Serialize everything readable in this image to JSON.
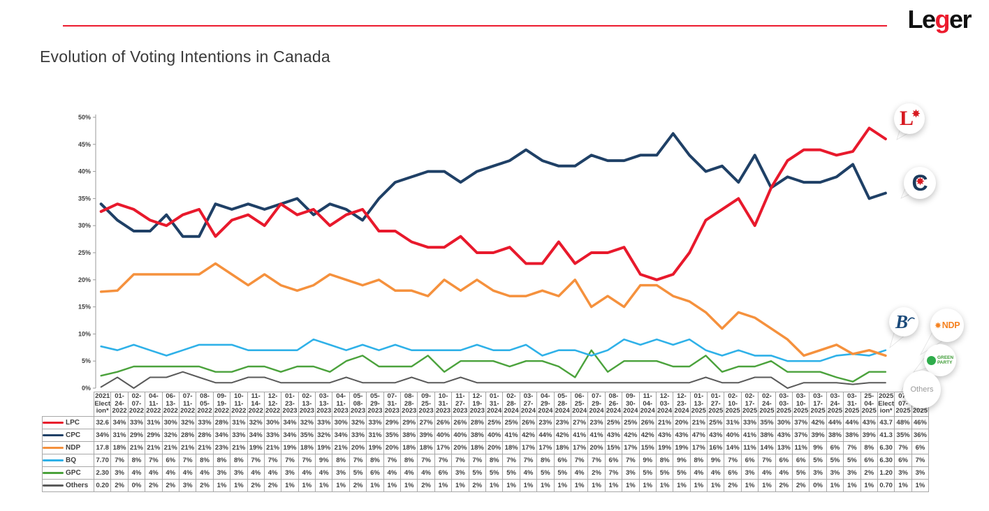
{
  "logo": {
    "part1": "Le",
    "part2": "g",
    "part3": "er"
  },
  "title": "Evolution of Voting Intentions in Canada",
  "chart_data": {
    "type": "line",
    "title": "Evolution of Voting Intentions in Canada",
    "xlabel": "",
    "ylabel": "",
    "ylim": [
      0,
      50
    ],
    "grid": false,
    "legend_position": "table-left",
    "yticks_pct": [
      0,
      5,
      10,
      15,
      20,
      25,
      30,
      35,
      40,
      45,
      50
    ],
    "x_labels": [
      "2021 Election*",
      "01-24-2022",
      "02-07-2022",
      "04-11-2022",
      "06-13-2022",
      "07-11-2022",
      "08-05-2022",
      "09-19-2022",
      "10-11-2022",
      "11-14-2022",
      "12-12-2022",
      "01-23-2023",
      "02-13-2023",
      "03-13-2023",
      "04-11-2023",
      "05-08-2023",
      "05-29-2023",
      "07-31-2023",
      "08-28-2023",
      "09-25-2023",
      "10-31-2023",
      "11-27-2023",
      "12-19-2023",
      "01-31-2024",
      "02-28-2024",
      "03-27-2024",
      "04-29-2024",
      "05-28-2024",
      "06-25-2024",
      "07-29-2024",
      "08-26-2024",
      "09-30-2024",
      "11-04-2024",
      "12-03-2024",
      "12-23-2024",
      "01-13-2025",
      "01-27-2025",
      "02-10-2025",
      "02-17-2025",
      "02-24-2025",
      "03-03-2025",
      "03-10-2025",
      "03-17-2025",
      "03-24-2025",
      "03-31-2025",
      "25-04-2025",
      "2025 Election*",
      "07-07-2025",
      "03-08-2025"
    ],
    "series": [
      {
        "name": "LPC",
        "color": "#e8192c",
        "values": [
          32.6,
          34,
          33,
          31,
          30,
          32,
          33,
          28,
          31,
          32,
          30,
          34,
          32,
          33,
          30,
          32,
          33,
          29,
          29,
          27,
          26,
          26,
          28,
          25,
          25,
          26,
          23,
          23,
          27,
          23,
          25,
          25,
          26,
          21,
          20,
          21,
          25,
          31,
          33,
          35,
          30,
          37,
          42,
          44,
          44,
          43,
          43.7,
          48,
          46
        ]
      },
      {
        "name": "CPC",
        "color": "#1f4066",
        "values": [
          34,
          31,
          29,
          29,
          32,
          28,
          28,
          34,
          33,
          34,
          33,
          34,
          35,
          32,
          34,
          33,
          31,
          35,
          38,
          39,
          40,
          40,
          38,
          40,
          41,
          42,
          44,
          42,
          41,
          41,
          43,
          42,
          42,
          43,
          43,
          47,
          43,
          40,
          41,
          38,
          43,
          37,
          39,
          38,
          38,
          39,
          41.3,
          35,
          36
        ]
      },
      {
        "name": "NDP",
        "color": "#f5913d",
        "values": [
          17.8,
          18,
          21,
          21,
          21,
          21,
          21,
          23,
          21,
          19,
          21,
          19,
          18,
          19,
          21,
          20,
          19,
          20,
          18,
          18,
          17,
          20,
          18,
          20,
          18,
          17,
          17,
          18,
          17,
          20,
          15,
          17,
          15,
          19,
          19,
          17,
          16,
          14,
          11,
          14,
          13,
          11,
          9,
          6,
          7,
          8,
          6.3,
          7,
          6
        ]
      },
      {
        "name": "BQ",
        "color": "#2fb1e8",
        "values": [
          7.7,
          7,
          8,
          7,
          6,
          7,
          8,
          8,
          8,
          7,
          7,
          7,
          7,
          9,
          8,
          7,
          8,
          7,
          8,
          7,
          7,
          7,
          7,
          8,
          7,
          7,
          8,
          6,
          7,
          7,
          6,
          7,
          9,
          8,
          9,
          8,
          9,
          7,
          6,
          7,
          6,
          6,
          5,
          5,
          5,
          6,
          6.3,
          6,
          7
        ]
      },
      {
        "name": "GPC",
        "color": "#4ba23c",
        "values": [
          2.3,
          3,
          4,
          4,
          4,
          4,
          4,
          3,
          3,
          4,
          4,
          3,
          4,
          4,
          3,
          5,
          6,
          4,
          4,
          4,
          6,
          3,
          5,
          5,
          5,
          4,
          5,
          5,
          4,
          2,
          7,
          3,
          5,
          5,
          5,
          4,
          4,
          6,
          3,
          4,
          4,
          5,
          3,
          3,
          3,
          2,
          1.2,
          3,
          3
        ]
      },
      {
        "name": "Others",
        "color": "#5a5a5a",
        "values": [
          0.2,
          2,
          0,
          2,
          2,
          3,
          2,
          1,
          1,
          2,
          2,
          1,
          1,
          1,
          1,
          2,
          1,
          1,
          1,
          2,
          1,
          1,
          2,
          1,
          1,
          1,
          1,
          1,
          1,
          1,
          1,
          1,
          1,
          1,
          1,
          1,
          1,
          2,
          1,
          1,
          2,
          2,
          0,
          1,
          1,
          1,
          0.7,
          1,
          1
        ]
      }
    ]
  },
  "table": {
    "columns": [
      "2021\nElect\nion*",
      "01-\n24-\n2022",
      "02-\n07-\n2022",
      "04-\n11-\n2022",
      "06-\n13-\n2022",
      "07-\n11-\n2022",
      "08-\n05-\n2022",
      "09-\n19-\n2022",
      "10-\n11-\n2022",
      "11-\n14-\n2022",
      "12-\n12-\n2022",
      "01-\n23-\n2023",
      "02-\n13-\n2023",
      "03-\n13-\n2023",
      "04-\n11-\n2023",
      "05-\n08-\n2023",
      "05-\n29-\n2023",
      "07-\n31-\n2023",
      "08-\n28-\n2023",
      "09-\n25-\n2023",
      "10-\n31-\n2023",
      "11-\n27-\n2023",
      "12-\n19-\n2023",
      "01-\n31-\n2024",
      "02-\n28-\n2024",
      "03-\n27-\n2024",
      "04-\n29-\n2024",
      "05-\n28-\n2024",
      "06-\n25-\n2024",
      "07-\n29-\n2024",
      "08-\n26-\n2024",
      "09-\n30-\n2024",
      "11-\n04-\n2024",
      "12-\n03-\n2024",
      "12-\n23-\n2024",
      "01-\n13-\n2025",
      "01-\n27-\n2025",
      "02-\n10-\n2025",
      "02-\n17-\n2025",
      "02-\n24-\n2025",
      "03-\n03-\n2025",
      "03-\n10-\n2025",
      "03-\n17-\n2025",
      "03-\n24-\n2025",
      "03-\n31-\n2025",
      "25-\n04-\n2025",
      "2025\nElect\nion*",
      "07-\n07-\n2025",
      "03-\n08-\n2025"
    ],
    "rows": [
      {
        "label": "LPC",
        "color": "#e8192c",
        "cells": [
          "32.6",
          "34%",
          "33%",
          "31%",
          "30%",
          "32%",
          "33%",
          "28%",
          "31%",
          "32%",
          "30%",
          "34%",
          "32%",
          "33%",
          "30%",
          "32%",
          "33%",
          "29%",
          "29%",
          "27%",
          "26%",
          "26%",
          "28%",
          "25%",
          "25%",
          "26%",
          "23%",
          "23%",
          "27%",
          "23%",
          "25%",
          "25%",
          "26%",
          "21%",
          "20%",
          "21%",
          "25%",
          "31%",
          "33%",
          "35%",
          "30%",
          "37%",
          "42%",
          "44%",
          "44%",
          "43%",
          "43.7",
          "48%",
          "46%"
        ]
      },
      {
        "label": "CPC",
        "color": "#1f4066",
        "cells": [
          "34%",
          "31%",
          "29%",
          "29%",
          "32%",
          "28%",
          "28%",
          "34%",
          "33%",
          "34%",
          "33%",
          "34%",
          "35%",
          "32%",
          "34%",
          "33%",
          "31%",
          "35%",
          "38%",
          "39%",
          "40%",
          "40%",
          "38%",
          "40%",
          "41%",
          "42%",
          "44%",
          "42%",
          "41%",
          "41%",
          "43%",
          "42%",
          "42%",
          "43%",
          "43%",
          "47%",
          "43%",
          "40%",
          "41%",
          "38%",
          "43%",
          "37%",
          "39%",
          "38%",
          "38%",
          "39%",
          "41.3",
          "35%",
          "36%"
        ]
      },
      {
        "label": "NDP",
        "color": "#f5913d",
        "cells": [
          "17.8",
          "18%",
          "21%",
          "21%",
          "21%",
          "21%",
          "21%",
          "23%",
          "21%",
          "19%",
          "21%",
          "19%",
          "18%",
          "19%",
          "21%",
          "20%",
          "19%",
          "20%",
          "18%",
          "18%",
          "17%",
          "20%",
          "18%",
          "20%",
          "18%",
          "17%",
          "17%",
          "18%",
          "17%",
          "20%",
          "15%",
          "17%",
          "15%",
          "19%",
          "19%",
          "17%",
          "16%",
          "14%",
          "11%",
          "14%",
          "13%",
          "11%",
          "9%",
          "6%",
          "7%",
          "8%",
          "6.30",
          "7%",
          "6%"
        ]
      },
      {
        "label": "BQ",
        "color": "#2fb1e8",
        "cells": [
          "7.70",
          "7%",
          "8%",
          "7%",
          "6%",
          "7%",
          "8%",
          "8%",
          "8%",
          "7%",
          "7%",
          "7%",
          "7%",
          "9%",
          "8%",
          "7%",
          "8%",
          "7%",
          "8%",
          "7%",
          "7%",
          "7%",
          "7%",
          "8%",
          "7%",
          "7%",
          "8%",
          "6%",
          "7%",
          "7%",
          "6%",
          "7%",
          "9%",
          "8%",
          "9%",
          "8%",
          "9%",
          "7%",
          "6%",
          "7%",
          "6%",
          "6%",
          "5%",
          "5%",
          "5%",
          "6%",
          "6.30",
          "6%",
          "7%"
        ]
      },
      {
        "label": "GPC",
        "color": "#4ba23c",
        "cells": [
          "2.30",
          "3%",
          "4%",
          "4%",
          "4%",
          "4%",
          "4%",
          "3%",
          "3%",
          "4%",
          "4%",
          "3%",
          "4%",
          "4%",
          "3%",
          "5%",
          "6%",
          "4%",
          "4%",
          "4%",
          "6%",
          "3%",
          "5%",
          "5%",
          "5%",
          "4%",
          "5%",
          "5%",
          "4%",
          "2%",
          "7%",
          "3%",
          "5%",
          "5%",
          "5%",
          "4%",
          "4%",
          "6%",
          "3%",
          "4%",
          "4%",
          "5%",
          "3%",
          "3%",
          "3%",
          "2%",
          "1.20",
          "3%",
          "3%"
        ]
      },
      {
        "label": "Others",
        "color": "#5a5a5a",
        "cells": [
          "0.20",
          "2%",
          "0%",
          "2%",
          "2%",
          "3%",
          "2%",
          "1%",
          "1%",
          "2%",
          "2%",
          "1%",
          "1%",
          "1%",
          "1%",
          "2%",
          "1%",
          "1%",
          "1%",
          "2%",
          "1%",
          "1%",
          "2%",
          "1%",
          "1%",
          "1%",
          "1%",
          "1%",
          "1%",
          "1%",
          "1%",
          "1%",
          "1%",
          "1%",
          "1%",
          "1%",
          "1%",
          "2%",
          "1%",
          "1%",
          "2%",
          "2%",
          "0%",
          "1%",
          "1%",
          "1%",
          "0.70",
          "1%",
          "1%"
        ]
      }
    ]
  },
  "bubbles": {
    "lpc_letter": "L",
    "cpc_letter": "C",
    "bq_letter": "B",
    "ndp_label": "NDP",
    "gpc_line1": "GREEN",
    "gpc_line2": "PARTY",
    "others_label": "Others"
  }
}
